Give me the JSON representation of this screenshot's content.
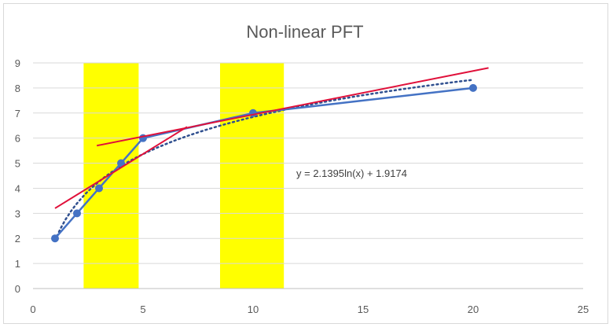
{
  "chart_data": {
    "type": "line",
    "title": "Non-linear PFT",
    "xlabel": "",
    "ylabel": "",
    "xlim": [
      0,
      25
    ],
    "ylim": [
      0,
      9
    ],
    "x_ticks": [
      0,
      5,
      10,
      15,
      20,
      25
    ],
    "y_ticks": [
      0,
      1,
      2,
      3,
      4,
      5,
      6,
      7,
      8,
      9
    ],
    "grid": "horizontal",
    "legend": "none",
    "series": [
      {
        "x": [
          1,
          2,
          3,
          4,
          5,
          10,
          20
        ],
        "values": [
          2,
          3,
          4,
          5,
          6,
          7,
          8
        ],
        "color": "#4472c4",
        "markers": true
      }
    ],
    "trendline": {
      "kind": "logarithmic",
      "a": 2.1395,
      "b": 1.9174,
      "x_range": [
        1,
        20
      ],
      "color": "#2f4f8f",
      "style": "dotted",
      "equation_label": "y = 2.1395ln(x) + 1.9174",
      "label_position": [
        6.75,
        4.55
      ]
    },
    "highlight_bands": [
      {
        "x_from": 2.3,
        "x_to": 4.8,
        "color": "#ffff00"
      },
      {
        "x_from": 8.5,
        "x_to": 11.4,
        "color": "#ffff00"
      }
    ],
    "tangent_lines": [
      {
        "points": [
          [
            1,
            3.2
          ],
          [
            7,
            6.45
          ]
        ],
        "color": "#e0103a"
      },
      {
        "points": [
          [
            2.9,
            5.7
          ],
          [
            20.7,
            8.8
          ]
        ],
        "color": "#e0103a"
      }
    ]
  }
}
